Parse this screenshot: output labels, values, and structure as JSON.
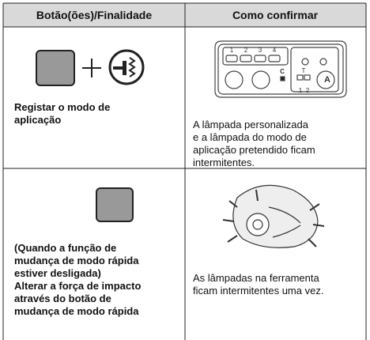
{
  "table": {
    "header": [
      "Botão(ões)/Finalidade",
      "Como confirmar"
    ],
    "rows": [
      {
        "purpose": [
          "Registar o modo de",
          "aplicação"
        ],
        "panel_labels": [
          "1",
          "2",
          "3",
          "4",
          "C",
          "T",
          "1",
          "2",
          "A"
        ],
        "confirm": [
          "A lâmpada personalizada",
          "e a lâmpada do modo de",
          "aplicação pretendido ficam",
          "intermitentes."
        ]
      },
      {
        "purpose": [
          "(Quando a função de",
          "mudança de modo rápida",
          "estiver desligada)",
          "Alterar a força de impacto",
          "através do botão de",
          "mudança de modo rápida"
        ],
        "confirm": [
          "As lâmpadas na ferramenta",
          "ficam intermitentes uma vez."
        ]
      }
    ]
  }
}
